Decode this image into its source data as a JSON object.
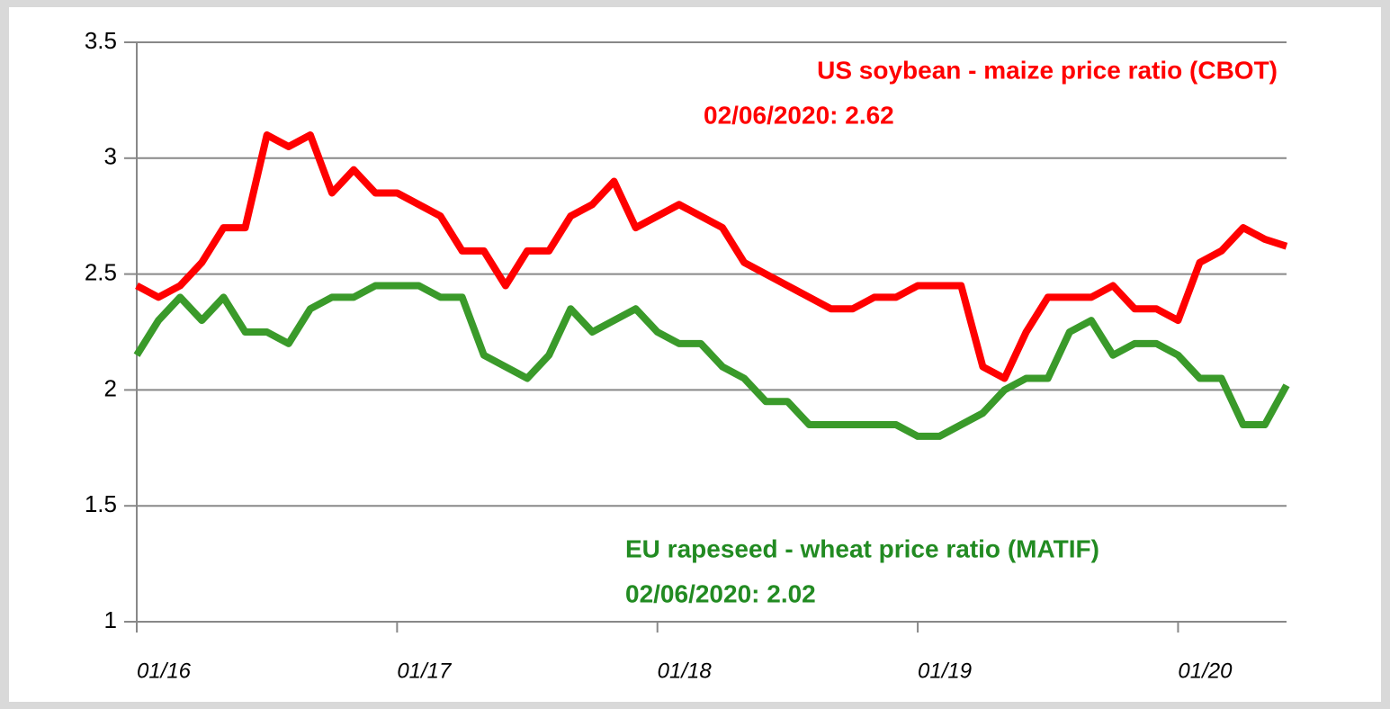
{
  "chart_data": {
    "type": "line",
    "x": [
      "2016-01",
      "2016-02",
      "2016-03",
      "2016-04",
      "2016-05",
      "2016-06",
      "2016-07",
      "2016-08",
      "2016-09",
      "2016-10",
      "2016-11",
      "2016-12",
      "2017-01",
      "2017-02",
      "2017-03",
      "2017-04",
      "2017-05",
      "2017-06",
      "2017-07",
      "2017-08",
      "2017-09",
      "2017-10",
      "2017-11",
      "2017-12",
      "2018-01",
      "2018-02",
      "2018-03",
      "2018-04",
      "2018-05",
      "2018-06",
      "2018-07",
      "2018-08",
      "2018-09",
      "2018-10",
      "2018-11",
      "2018-12",
      "2019-01",
      "2019-02",
      "2019-03",
      "2019-04",
      "2019-05",
      "2019-06",
      "2019-07",
      "2019-08",
      "2019-09",
      "2019-10",
      "2019-11",
      "2019-12",
      "2020-01",
      "2020-02",
      "2020-03",
      "2020-04",
      "2020-05",
      "2020-06"
    ],
    "series": [
      {
        "name": "US soybean - maize price ratio (CBOT)",
        "color": "#ff0000",
        "values": [
          2.45,
          2.4,
          2.45,
          2.55,
          2.7,
          2.7,
          3.1,
          3.05,
          3.1,
          2.85,
          2.95,
          2.85,
          2.85,
          2.8,
          2.75,
          2.6,
          2.6,
          2.45,
          2.6,
          2.6,
          2.75,
          2.8,
          2.9,
          2.7,
          2.75,
          2.8,
          2.75,
          2.7,
          2.55,
          2.5,
          2.45,
          2.4,
          2.35,
          2.35,
          2.4,
          2.4,
          2.45,
          2.45,
          2.45,
          2.1,
          2.05,
          2.25,
          2.4,
          2.4,
          2.4,
          2.45,
          2.35,
          2.35,
          2.3,
          2.55,
          2.6,
          2.7,
          2.65,
          2.62
        ]
      },
      {
        "name": "EU rapeseed - wheat price ratio (MATIF)",
        "color": "#3a9a2a",
        "values": [
          2.15,
          2.3,
          2.4,
          2.3,
          2.4,
          2.25,
          2.25,
          2.2,
          2.35,
          2.4,
          2.4,
          2.45,
          2.45,
          2.45,
          2.4,
          2.4,
          2.15,
          2.1,
          2.05,
          2.15,
          2.35,
          2.25,
          2.3,
          2.35,
          2.25,
          2.2,
          2.2,
          2.1,
          2.05,
          1.95,
          1.95,
          1.85,
          1.85,
          1.85,
          1.85,
          1.85,
          1.8,
          1.8,
          1.85,
          1.9,
          2.0,
          2.05,
          2.05,
          2.25,
          2.3,
          2.15,
          2.2,
          2.2,
          2.15,
          2.05,
          2.05,
          1.85,
          1.85,
          2.02
        ]
      }
    ],
    "annotations": [
      {
        "lines": [
          "US soybean - maize price ratio (CBOT)",
          "02/06/2020: 2.62"
        ],
        "color": "#ff0000"
      },
      {
        "lines": [
          "EU rapeseed - wheat price ratio (MATIF)",
          "02/06/2020: 2.02"
        ],
        "color": "#228b22"
      }
    ],
    "ylim": [
      1,
      3.5
    ],
    "yticks": [
      1,
      1.5,
      2,
      2.5,
      3,
      3.5
    ],
    "xlim": [
      "2016-01",
      "2020-06"
    ],
    "xticks": [
      {
        "value": "2016-01",
        "label": "01/16"
      },
      {
        "value": "2017-01",
        "label": "01/17"
      },
      {
        "value": "2018-01",
        "label": "01/18"
      },
      {
        "value": "2019-01",
        "label": "01/19"
      },
      {
        "value": "2020-01",
        "label": "01/20"
      }
    ],
    "grid": true
  }
}
